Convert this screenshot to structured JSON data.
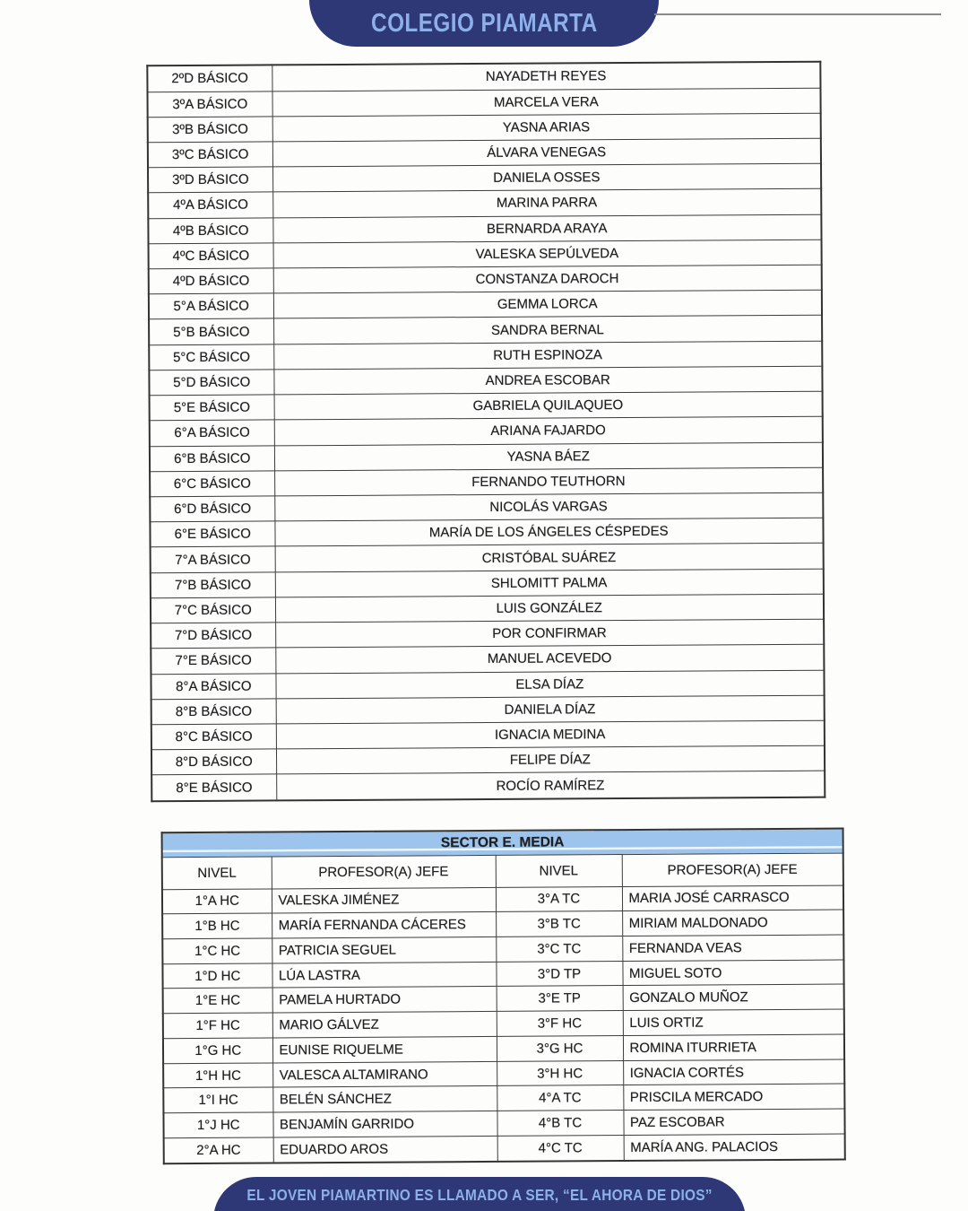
{
  "colors": {
    "banner_navy": "#2e3876",
    "banner_text_blue": "#8cb0e9",
    "media_header_blue": "#9dc4ec",
    "table_border": "#3c3c3c",
    "ink": "#1f1f1f",
    "line_gray": "#8a8a8a"
  },
  "header": {
    "school_name": "COLEGIO PIAMARTA"
  },
  "basica_table": {
    "rows": [
      {
        "nivel": "2ºD BÁSICO",
        "profesor": "NAYADETH REYES"
      },
      {
        "nivel": "3ºA BÁSICO",
        "profesor": "MARCELA VERA"
      },
      {
        "nivel": "3ºB BÁSICO",
        "profesor": "YASNA ARIAS"
      },
      {
        "nivel": "3ºC BÁSICO",
        "profesor": "ÁLVARA VENEGAS"
      },
      {
        "nivel": "3ºD BÁSICO",
        "profesor": "DANIELA OSSES"
      },
      {
        "nivel": "4ºA BÁSICO",
        "profesor": "MARINA PARRA"
      },
      {
        "nivel": "4ºB BÁSICO",
        "profesor": "BERNARDA ARAYA"
      },
      {
        "nivel": "4ºC BÁSICO",
        "profesor": "VALESKA SEPÚLVEDA"
      },
      {
        "nivel": "4ºD BÁSICO",
        "profesor": "CONSTANZA DAROCH"
      },
      {
        "nivel": "5°A BÁSICO",
        "profesor": "GEMMA LORCA"
      },
      {
        "nivel": "5°B BÁSICO",
        "profesor": "SANDRA BERNAL"
      },
      {
        "nivel": "5°C BÁSICO",
        "profesor": "RUTH ESPINOZA"
      },
      {
        "nivel": "5°D BÁSICO",
        "profesor": "ANDREA ESCOBAR"
      },
      {
        "nivel": "5°E BÁSICO",
        "profesor": "GABRIELA QUILAQUEO"
      },
      {
        "nivel": "6°A BÁSICO",
        "profesor": "ARIANA FAJARDO"
      },
      {
        "nivel": "6°B BÁSICO",
        "profesor": "YASNA BÁEZ"
      },
      {
        "nivel": "6°C BÁSICO",
        "profesor": "FERNANDO TEUTHORN"
      },
      {
        "nivel": "6°D BÁSICO",
        "profesor": "NICOLÁS VARGAS"
      },
      {
        "nivel": "6°E BÁSICO",
        "profesor": "MARÍA DE LOS ÁNGELES CÉSPEDES"
      },
      {
        "nivel": "7°A BÁSICO",
        "profesor": "CRISTÓBAL SUÁREZ"
      },
      {
        "nivel": "7°B BÁSICO",
        "profesor": "SHLOMITT PALMA"
      },
      {
        "nivel": "7°C BÁSICO",
        "profesor": "LUIS GONZÁLEZ"
      },
      {
        "nivel": "7°D BÁSICO",
        "profesor": "POR CONFIRMAR"
      },
      {
        "nivel": "7°E BÁSICO",
        "profesor": "MANUEL ACEVEDO"
      },
      {
        "nivel": "8°A BÁSICO",
        "profesor": "ELSA DÍAZ"
      },
      {
        "nivel": "8°B BÁSICO",
        "profesor": "DANIELA DÍAZ"
      },
      {
        "nivel": "8°C BÁSICO",
        "profesor": "IGNACIA MEDINA"
      },
      {
        "nivel": "8°D BÁSICO",
        "profesor": "FELIPE DÍAZ"
      },
      {
        "nivel": "8°E BÁSICO",
        "profesor": "ROCÍO RAMÍREZ"
      }
    ]
  },
  "media_table": {
    "title": "SECTOR E. MEDIA",
    "col_headers": [
      "NIVEL",
      "PROFESOR(A) JEFE",
      "NIVEL",
      "PROFESOR(A) JEFE"
    ],
    "rows": [
      {
        "nivel_izq": "1°A HC",
        "prof_izq": "VALESKA JIMÉNEZ",
        "nivel_der": "3°A TC",
        "prof_der": "MARIA JOSÉ CARRASCO"
      },
      {
        "nivel_izq": "1°B HC",
        "prof_izq": "MARÍA FERNANDA CÁCERES",
        "nivel_der": "3°B TC",
        "prof_der": "MIRIAM MALDONADO"
      },
      {
        "nivel_izq": "1°C HC",
        "prof_izq": "PATRICIA SEGUEL",
        "nivel_der": "3°C TC",
        "prof_der": "FERNANDA VEAS"
      },
      {
        "nivel_izq": "1°D HC",
        "prof_izq": "LÚA LASTRA",
        "nivel_der": "3°D TP",
        "prof_der": "MIGUEL SOTO"
      },
      {
        "nivel_izq": "1°E HC",
        "prof_izq": "PAMELA HURTADO",
        "nivel_der": "3°E TP",
        "prof_der": "GONZALO MUÑOZ"
      },
      {
        "nivel_izq": "1°F HC",
        "prof_izq": "MARIO GÁLVEZ",
        "nivel_der": "3°F HC",
        "prof_der": "LUIS ORTIZ"
      },
      {
        "nivel_izq": "1°G HC",
        "prof_izq": "EUNISE RIQUELME",
        "nivel_der": "3°G HC",
        "prof_der": "ROMINA ITURRIETA"
      },
      {
        "nivel_izq": "1°H HC",
        "prof_izq": "VALESCA ALTAMIRANO",
        "nivel_der": "3°H HC",
        "prof_der": "IGNACIA CORTÉS"
      },
      {
        "nivel_izq": "1°I HC",
        "prof_izq": "BELÉN SÁNCHEZ",
        "nivel_der": "4°A TC",
        "prof_der": "PRISCILA MERCADO"
      },
      {
        "nivel_izq": "1°J HC",
        "prof_izq": "BENJAMÍN GARRIDO",
        "nivel_der": "4°B TC",
        "prof_der": "PAZ ESCOBAR"
      },
      {
        "nivel_izq": "2°A HC",
        "prof_izq": "EDUARDO AROS",
        "nivel_der": "4°C TC",
        "prof_der": "MARÍA ANG. PALACIOS"
      }
    ]
  },
  "footer": {
    "motto": "EL JOVEN PIAMARTINO ES LLAMADO A SER, “EL AHORA DE DIOS”"
  }
}
